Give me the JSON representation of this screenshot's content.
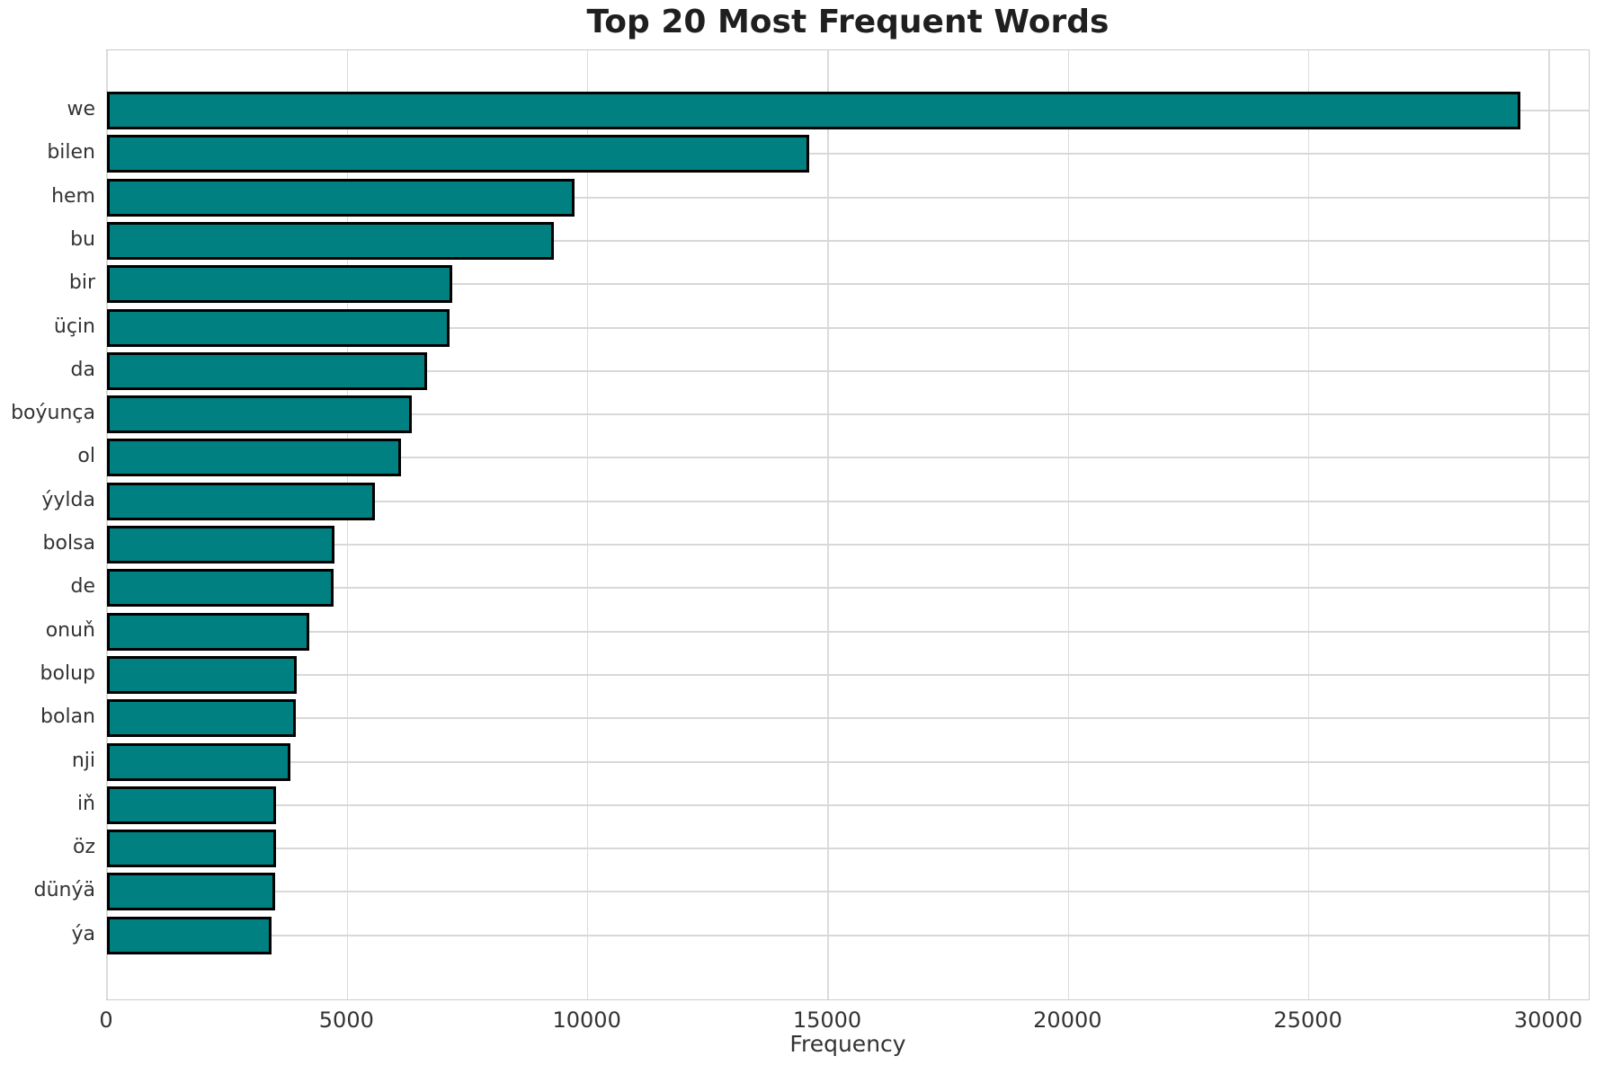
{
  "title": "Top 20 Most Frequent Words",
  "xlabel": "Frequency",
  "colors": {
    "bar_fill": "#008080",
    "bar_edge": "#000000",
    "gridline": "#d8d8d8",
    "spine": "#cbcbcb",
    "title_text": "#1f1f1f",
    "tick_text": "#333333",
    "background": "#ffffff"
  },
  "chart_data": {
    "type": "bar",
    "orientation": "horizontal",
    "title": "Top 20 Most Frequent Words",
    "xlabel": "Frequency",
    "ylabel": "",
    "categories": [
      "we",
      "bilen",
      "hem",
      "bu",
      "bir",
      "üçin",
      "da",
      "boýunça",
      "ol",
      "ýylda",
      "bolsa",
      "de",
      "onuň",
      "bolup",
      "bolan",
      "nji",
      "iň",
      "öz",
      "dünýä",
      "ýa"
    ],
    "values": [
      29400,
      14600,
      9720,
      9300,
      7180,
      7120,
      6660,
      6340,
      6110,
      5570,
      4740,
      4710,
      4210,
      3950,
      3930,
      3810,
      3520,
      3510,
      3500,
      3420
    ],
    "xticks": [
      0,
      5000,
      10000,
      15000,
      20000,
      25000,
      30000
    ],
    "xlim": [
      0,
      30860
    ],
    "grid": true,
    "legend": false
  }
}
